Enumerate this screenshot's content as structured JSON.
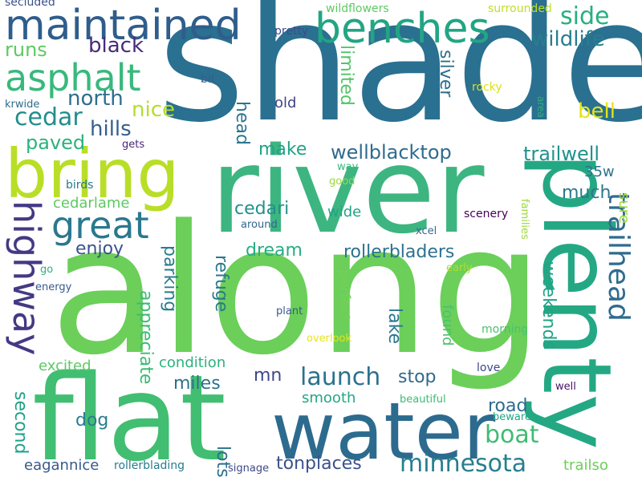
{
  "words": [
    {
      "text": "shade",
      "color": "#2a7090",
      "vertical": false
    },
    {
      "text": "along",
      "color": "#6bcf5a",
      "vertical": false
    },
    {
      "text": "river",
      "color": "#3db581",
      "vertical": false
    },
    {
      "text": "flat",
      "color": "#41be71",
      "vertical": false
    },
    {
      "text": "water",
      "color": "#2d6b8e",
      "vertical": false
    },
    {
      "text": "plenty",
      "color": "#24a884",
      "vertical": true
    },
    {
      "text": "bring",
      "color": "#b9de27",
      "vertical": false
    },
    {
      "text": "maintained",
      "color": "#2f5d8c",
      "vertical": false
    },
    {
      "text": "benches",
      "color": "#22a583",
      "vertical": false
    },
    {
      "text": "asphalt",
      "color": "#38b97c",
      "vertical": false
    },
    {
      "text": "great",
      "color": "#2a788e",
      "vertical": false
    },
    {
      "text": "highway",
      "color": "#443983",
      "vertical": true
    },
    {
      "text": "trailhead",
      "color": "#2f6b8e",
      "vertical": true
    },
    {
      "text": "minnesota",
      "color": "#277f8e",
      "vertical": false
    },
    {
      "text": "launch",
      "color": "#2c718e",
      "vertical": false
    },
    {
      "text": "boat",
      "color": "#3fbc73",
      "vertical": false
    },
    {
      "text": "cedar",
      "color": "#218f8d",
      "vertical": false
    },
    {
      "text": "side",
      "color": "#29af7f",
      "vertical": false
    },
    {
      "text": "wildlife",
      "color": "#277e8e",
      "vertical": false
    },
    {
      "text": "black",
      "color": "#472c7a",
      "vertical": false
    },
    {
      "text": "north",
      "color": "#2e6e8e",
      "vertical": false
    },
    {
      "text": "hills",
      "color": "#355f8d",
      "vertical": false
    },
    {
      "text": "nice",
      "color": "#b5de2b",
      "vertical": false
    },
    {
      "text": "bell",
      "color": "#e5e419",
      "vertical": false
    },
    {
      "text": "paved",
      "color": "#2db27d",
      "vertical": false
    },
    {
      "text": "runs",
      "color": "#5ec962",
      "vertical": false
    },
    {
      "text": "head",
      "color": "#2a768e",
      "vertical": true
    },
    {
      "text": "make",
      "color": "#20a386",
      "vertical": false
    },
    {
      "text": "wellblacktop",
      "color": "#2f6c8e",
      "vertical": false
    },
    {
      "text": "trailwell",
      "color": "#20928c",
      "vertical": false
    },
    {
      "text": "limited",
      "color": "#52c569",
      "vertical": true
    },
    {
      "text": "silver",
      "color": "#2e6f8e",
      "vertical": true
    },
    {
      "text": "old",
      "color": "#414487",
      "vertical": false
    },
    {
      "text": "much",
      "color": "#2a788e",
      "vertical": false
    },
    {
      "text": "35w",
      "color": "#2c728e",
      "vertical": false
    },
    {
      "text": "sure",
      "color": "#a0da39",
      "vertical": true
    },
    {
      "text": "enjoy",
      "color": "#3b528b",
      "vertical": false
    },
    {
      "text": "cedarlame",
      "color": "#5ec962",
      "vertical": false
    },
    {
      "text": "cedari",
      "color": "#21918c",
      "vertical": false
    },
    {
      "text": "wide",
      "color": "#20a486",
      "vertical": false
    },
    {
      "text": "dream",
      "color": "#27ad81",
      "vertical": false
    },
    {
      "text": "rollerbladers",
      "color": "#2c728e",
      "vertical": false
    },
    {
      "text": "parking",
      "color": "#287c8e",
      "vertical": true
    },
    {
      "text": "refuge",
      "color": "#2a778e",
      "vertical": true
    },
    {
      "text": "appreciate",
      "color": "#3bbb75",
      "vertical": true
    },
    {
      "text": "lake",
      "color": "#2a788e",
      "vertical": true
    },
    {
      "text": "weekends",
      "color": "#20a386",
      "vertical": true
    },
    {
      "text": "mn",
      "color": "#3e4989",
      "vertical": false
    },
    {
      "text": "stop",
      "color": "#31688e",
      "vertical": false
    },
    {
      "text": "miles",
      "color": "#2c718e",
      "vertical": false
    },
    {
      "text": "condition",
      "color": "#2db27d",
      "vertical": false
    },
    {
      "text": "excited",
      "color": "#5ec962",
      "vertical": false
    },
    {
      "text": "dog",
      "color": "#287d8e",
      "vertical": false
    },
    {
      "text": "smooth",
      "color": "#22a884",
      "vertical": false
    },
    {
      "text": "road",
      "color": "#2f6b8e",
      "vertical": false
    },
    {
      "text": "second",
      "color": "#1fa188",
      "vertical": true
    },
    {
      "text": "lots",
      "color": "#2e6e8e",
      "vertical": true
    },
    {
      "text": "eagannice",
      "color": "#38598c",
      "vertical": false
    },
    {
      "text": "tonplaces",
      "color": "#3b528b",
      "vertical": false
    },
    {
      "text": "trailso",
      "color": "#6ccd5a",
      "vertical": false
    },
    {
      "text": "perfect",
      "color": "#75d054",
      "vertical": true
    },
    {
      "text": "found",
      "color": "#4ac16d",
      "vertical": true
    },
    {
      "text": "secluded",
      "color": "#3b528b",
      "vertical": false
    },
    {
      "text": "wildflowers",
      "color": "#5ec962",
      "vertical": false
    },
    {
      "text": "surrounded",
      "color": "#bddf26",
      "vertical": false
    },
    {
      "text": "pretty",
      "color": "#3e4c8a",
      "vertical": false
    },
    {
      "text": "bit",
      "color": "#355f8d",
      "vertical": false
    },
    {
      "text": "krwide",
      "color": "#2e6e8e",
      "vertical": false
    },
    {
      "text": "rocky",
      "color": "#d8e219",
      "vertical": false
    },
    {
      "text": "area",
      "color": "#2db27d",
      "vertical": true
    },
    {
      "text": "gets",
      "color": "#482677",
      "vertical": false
    },
    {
      "text": "birds",
      "color": "#2a788e",
      "vertical": false
    },
    {
      "text": "way",
      "color": "#37b878",
      "vertical": false
    },
    {
      "text": "good",
      "color": "#9bd93c",
      "vertical": false
    },
    {
      "text": "scenery",
      "color": "#440154",
      "vertical": false
    },
    {
      "text": "families",
      "color": "#9bd93c",
      "vertical": true
    },
    {
      "text": "around",
      "color": "#30678e",
      "vertical": false
    },
    {
      "text": "xcel",
      "color": "#31688e",
      "vertical": false
    },
    {
      "text": "go",
      "color": "#2db27d",
      "vertical": false
    },
    {
      "text": "energy",
      "color": "#38598c",
      "vertical": false
    },
    {
      "text": "early",
      "color": "#b2dd2d",
      "vertical": false
    },
    {
      "text": "plant",
      "color": "#375b8d",
      "vertical": false
    },
    {
      "text": "overlook",
      "color": "#e5e419",
      "vertical": false
    },
    {
      "text": "morning",
      "color": "#4ac16d",
      "vertical": false
    },
    {
      "text": "love",
      "color": "#3f4788",
      "vertical": false
    },
    {
      "text": "well",
      "color": "#481467",
      "vertical": false
    },
    {
      "text": "beautiful",
      "color": "#3bbb75",
      "vertical": false
    },
    {
      "text": "beware",
      "color": "#22a785",
      "vertical": false
    },
    {
      "text": "rollerblading",
      "color": "#287c8e",
      "vertical": false
    },
    {
      "text": "signage",
      "color": "#3e4989",
      "vertical": false
    }
  ]
}
